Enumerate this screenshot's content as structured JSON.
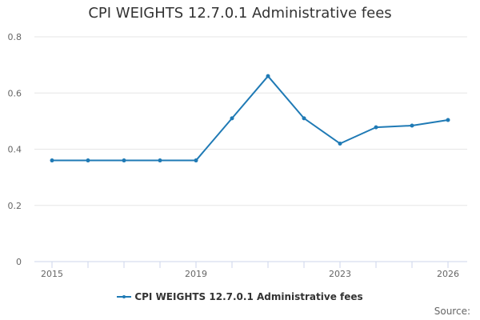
{
  "title": "CPI WEIGHTS 12.7.0.1 Administrative fees",
  "source_label": "Source:",
  "colors": {
    "series": "#1f7ab5",
    "grid": "#e6e6e6",
    "axis": "#ccd6eb",
    "text": "#666666"
  },
  "chart_data": {
    "type": "line",
    "title": "CPI WEIGHTS 12.7.0.1 Administrative fees",
    "xlabel": "",
    "ylabel": "",
    "x": [
      2015,
      2016,
      2017,
      2018,
      2019,
      2020,
      2021,
      2022,
      2023,
      2024,
      2025,
      2026
    ],
    "series": [
      {
        "name": "CPI WEIGHTS 12.7.0.1 Administrative fees",
        "values": [
          0.36,
          0.36,
          0.36,
          0.36,
          0.36,
          0.51,
          0.66,
          0.51,
          0.42,
          0.478,
          0.484,
          0.504
        ]
      }
    ],
    "ylim": [
      0,
      0.8
    ],
    "yticks": [
      "0",
      "0.2",
      "0.4",
      "0.6",
      "0.8"
    ],
    "xticks": [
      "2015",
      "2019",
      "2023",
      "2026"
    ],
    "grid": true,
    "legend": "bottom-center"
  }
}
